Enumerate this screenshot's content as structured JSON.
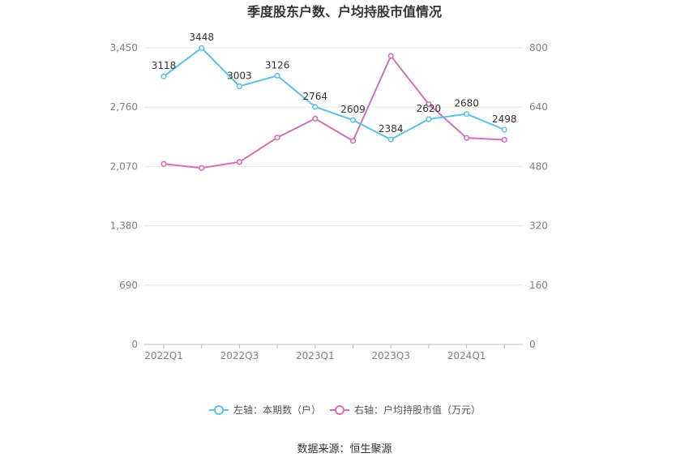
{
  "chart_data": {
    "type": "line",
    "title": "季度股东户数、户均持股市值情况",
    "categories": [
      "2022Q1",
      "2022Q2",
      "2022Q3",
      "2022Q4",
      "2023Q1",
      "2023Q2",
      "2023Q3",
      "2023Q4",
      "2024Q1",
      "2024Q2"
    ],
    "x_tick_labels": [
      "2022Q1",
      "2022Q3",
      "2023Q1",
      "2023Q3",
      "2024Q1"
    ],
    "left_axis": {
      "ylim": [
        0,
        3450
      ],
      "ticks": [
        "0",
        "690",
        "1,380",
        "2,070",
        "2,760",
        "3,450"
      ]
    },
    "right_axis": {
      "ylim": [
        0,
        800
      ],
      "ticks": [
        "0",
        "160",
        "320",
        "480",
        "640",
        "800"
      ]
    },
    "series": [
      {
        "name": "左轴：本期数（户）",
        "axis": "left",
        "color": "#5bc0eb",
        "values": [
          3118,
          3448,
          3003,
          3126,
          2764,
          2609,
          2384,
          2620,
          2680,
          2498
        ],
        "labels": [
          "3118",
          "3448",
          "3003",
          "3126",
          "2764",
          "2609",
          "2384",
          "2620",
          "2680",
          "2498"
        ]
      },
      {
        "name": "右轴：户均持股市值（万元）",
        "axis": "right",
        "color": "#d46fb5",
        "values": [
          487,
          476,
          492,
          558,
          609,
          549,
          778,
          648,
          557,
          552
        ]
      }
    ],
    "grid": true,
    "legend_position": "bottom"
  },
  "source": "数据来源：恒生聚源"
}
